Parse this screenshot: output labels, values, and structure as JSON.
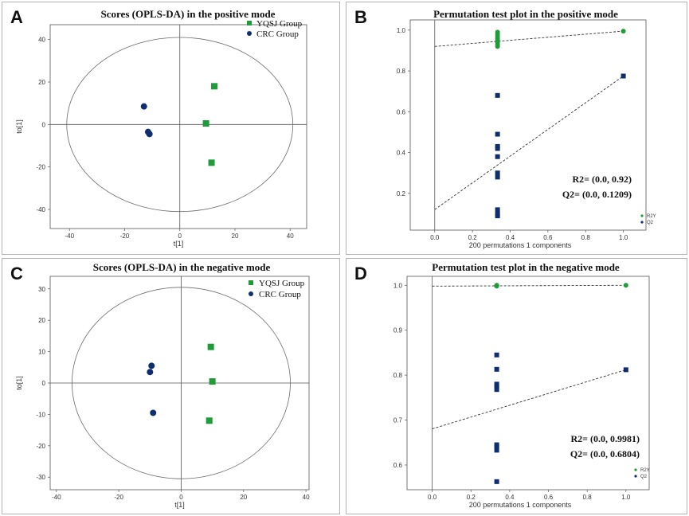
{
  "colors": {
    "yqsj": "#1e9c3a",
    "crc": "#0f2e6e",
    "r2y": "#1e9c3a",
    "q2": "#0f2e6e",
    "axis": "#555555"
  },
  "chart_data": [
    {
      "id": "A",
      "type": "scatter",
      "panel_label": "A",
      "title": "Scores (OPLS-DA) in the positive mode",
      "xlabel": "t[1]",
      "ylabel": "to[1]",
      "xlim": [
        -47,
        46
      ],
      "ylim": [
        -49,
        47
      ],
      "xticks": [
        -40,
        -20,
        0,
        20,
        40
      ],
      "yticks": [
        -40,
        -20,
        0,
        20,
        40
      ],
      "ellipse": {
        "rx": 41,
        "ry": 41
      },
      "legend": [
        "YQSJ Group",
        "CRC Group"
      ],
      "series": [
        {
          "name": "YQSJ Group",
          "marker": "square",
          "color": "#1e9c3a",
          "points": [
            [
              12.5,
              18
            ],
            [
              9.5,
              0.5
            ],
            [
              11.5,
              -18
            ]
          ]
        },
        {
          "name": "CRC Group",
          "marker": "circle",
          "color": "#0f2e6e",
          "points": [
            [
              -13,
              8.5
            ],
            [
              -11.5,
              -3.5
            ],
            [
              -11,
              -4.5
            ]
          ]
        }
      ]
    },
    {
      "id": "B",
      "type": "scatter",
      "panel_label": "B",
      "title": "Permutation test plot in the positive mode",
      "xlabel": "200 permutations 1 components",
      "ylabel": "",
      "xlim": [
        -0.13,
        1.12
      ],
      "ylim": [
        0.02,
        1.05
      ],
      "xticks": [
        0.0,
        0.2,
        0.4,
        0.6,
        0.8,
        1.0
      ],
      "yticks": [
        0.2,
        0.4,
        0.6,
        0.8,
        1.0
      ],
      "legend": [
        "R2Y",
        "Q2"
      ],
      "annotations": [
        "R2= (0.0, 0.92)",
        "Q2= (0.0, 0.1209)"
      ],
      "series": [
        {
          "name": "R2Y",
          "marker": "circle",
          "color": "#1e9c3a",
          "points": [
            [
              0.333,
              0.99
            ],
            [
              0.333,
              0.98
            ],
            [
              0.333,
              0.97
            ],
            [
              0.333,
              0.96
            ],
            [
              0.333,
              0.95
            ],
            [
              0.333,
              0.945
            ],
            [
              0.333,
              0.94
            ],
            [
              0.333,
              0.93
            ],
            [
              0.333,
              0.92
            ],
            [
              1.0,
              0.995
            ]
          ],
          "regression": [
            [
              0.0,
              0.92
            ],
            [
              1.0,
              0.995
            ]
          ]
        },
        {
          "name": "Q2",
          "marker": "square",
          "color": "#0f2e6e",
          "points": [
            [
              0.333,
              0.68
            ],
            [
              0.333,
              0.49
            ],
            [
              0.333,
              0.43
            ],
            [
              0.333,
              0.42
            ],
            [
              0.333,
              0.38
            ],
            [
              0.333,
              0.3
            ],
            [
              0.333,
              0.28
            ],
            [
              0.333,
              0.12
            ],
            [
              0.333,
              0.1
            ],
            [
              0.333,
              0.09
            ],
            [
              1.0,
              0.775
            ]
          ],
          "regression": [
            [
              0.0,
              0.1209
            ],
            [
              1.0,
              0.775
            ]
          ]
        }
      ]
    },
    {
      "id": "C",
      "type": "scatter",
      "panel_label": "C",
      "title": "Scores (OPLS-DA) in the negative mode",
      "xlabel": "t[1]",
      "ylabel": "to[1]",
      "xlim": [
        -42,
        41
      ],
      "ylim": [
        -34,
        34
      ],
      "xticks": [
        -40,
        -20,
        0,
        20,
        40
      ],
      "yticks": [
        -30,
        -20,
        -10,
        0,
        10,
        20,
        30
      ],
      "ellipse": {
        "rx": 35,
        "ry": 30.5
      },
      "legend": [
        "YQSJ Group",
        "CRC Group"
      ],
      "series": [
        {
          "name": "YQSJ Group",
          "marker": "square",
          "color": "#1e9c3a",
          "points": [
            [
              9.5,
              11.5
            ],
            [
              10,
              0.5
            ],
            [
              9,
              -12
            ]
          ]
        },
        {
          "name": "CRC Group",
          "marker": "circle",
          "color": "#0f2e6e",
          "points": [
            [
              -9.5,
              5.5
            ],
            [
              -10,
              3.5
            ],
            [
              -9,
              -9.5
            ]
          ]
        }
      ]
    },
    {
      "id": "D",
      "type": "scatter",
      "panel_label": "D",
      "title": "Permutation test plot in the negative mode",
      "xlabel": "200 permutations 1 components",
      "ylabel": "",
      "xlim": [
        -0.13,
        1.12
      ],
      "ylim": [
        0.545,
        1.02
      ],
      "xticks": [
        0.0,
        0.2,
        0.4,
        0.6,
        0.8,
        1.0
      ],
      "yticks": [
        0.6,
        0.7,
        0.8,
        0.9,
        1.0
      ],
      "legend": [
        "R2Y",
        "Q2"
      ],
      "annotations": [
        "R2= (0.0, 0.9981)",
        "Q2= (0.0, 0.6804)"
      ],
      "series": [
        {
          "name": "R2Y",
          "marker": "circle",
          "color": "#1e9c3a",
          "points": [
            [
              0.333,
              1.0
            ],
            [
              0.333,
              0.999
            ],
            [
              0.333,
              0.998
            ],
            [
              1.0,
              1.0
            ]
          ],
          "regression": [
            [
              0.0,
              0.9981
            ],
            [
              1.0,
              1.0
            ]
          ]
        },
        {
          "name": "Q2",
          "marker": "square",
          "color": "#0f2e6e",
          "points": [
            [
              0.333,
              0.845
            ],
            [
              0.333,
              0.813
            ],
            [
              0.333,
              0.78
            ],
            [
              0.333,
              0.775
            ],
            [
              0.333,
              0.768
            ],
            [
              0.333,
              0.645
            ],
            [
              0.333,
              0.64
            ],
            [
              0.333,
              0.633
            ],
            [
              0.333,
              0.563
            ],
            [
              1.0,
              0.812
            ]
          ],
          "regression": [
            [
              0.0,
              0.6804
            ],
            [
              1.0,
              0.812
            ]
          ]
        }
      ]
    }
  ]
}
